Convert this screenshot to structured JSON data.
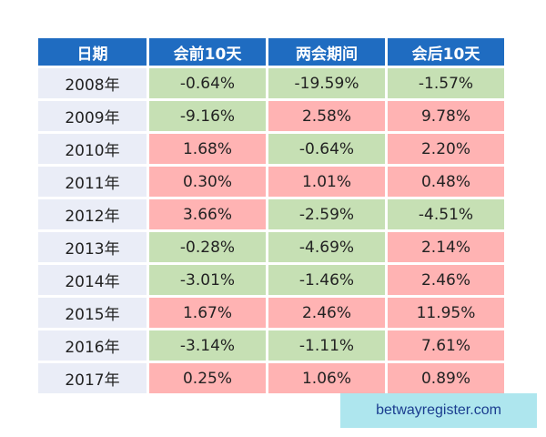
{
  "chart_data": {
    "type": "table",
    "columns": [
      "日期",
      "会前10天",
      "两会期间",
      "会后10天"
    ],
    "rows": [
      {
        "date": "2008年",
        "values": [
          "-0.64%",
          "-19.59%",
          "-1.57%"
        ]
      },
      {
        "date": "2009年",
        "values": [
          "-9.16%",
          "2.58%",
          "9.78%"
        ]
      },
      {
        "date": "2010年",
        "values": [
          "1.68%",
          "-0.64%",
          "2.20%"
        ]
      },
      {
        "date": "2011年",
        "values": [
          "0.30%",
          "1.01%",
          "0.48%"
        ]
      },
      {
        "date": "2012年",
        "values": [
          "3.66%",
          "-2.59%",
          "-4.51%"
        ]
      },
      {
        "date": "2013年",
        "values": [
          "-0.28%",
          "-4.69%",
          "2.14%"
        ]
      },
      {
        "date": "2014年",
        "values": [
          "-3.01%",
          "-1.46%",
          "2.46%"
        ]
      },
      {
        "date": "2015年",
        "values": [
          "1.67%",
          "2.46%",
          "11.95%"
        ]
      },
      {
        "date": "2016年",
        "values": [
          "-3.14%",
          "-1.11%",
          "7.61%"
        ]
      },
      {
        "date": "2017年",
        "values": [
          "0.25%",
          "1.06%",
          "0.89%"
        ]
      }
    ],
    "colors": {
      "header_bg": "#1f6cc1",
      "header_text": "#ffffff",
      "date_bg": "#eaedf7",
      "positive_bg": "#ffb3b3",
      "negative_bg": "#c6e0b4"
    }
  },
  "watermark": {
    "text": "betwayregister.com",
    "bg_color": "#aee6ee"
  }
}
